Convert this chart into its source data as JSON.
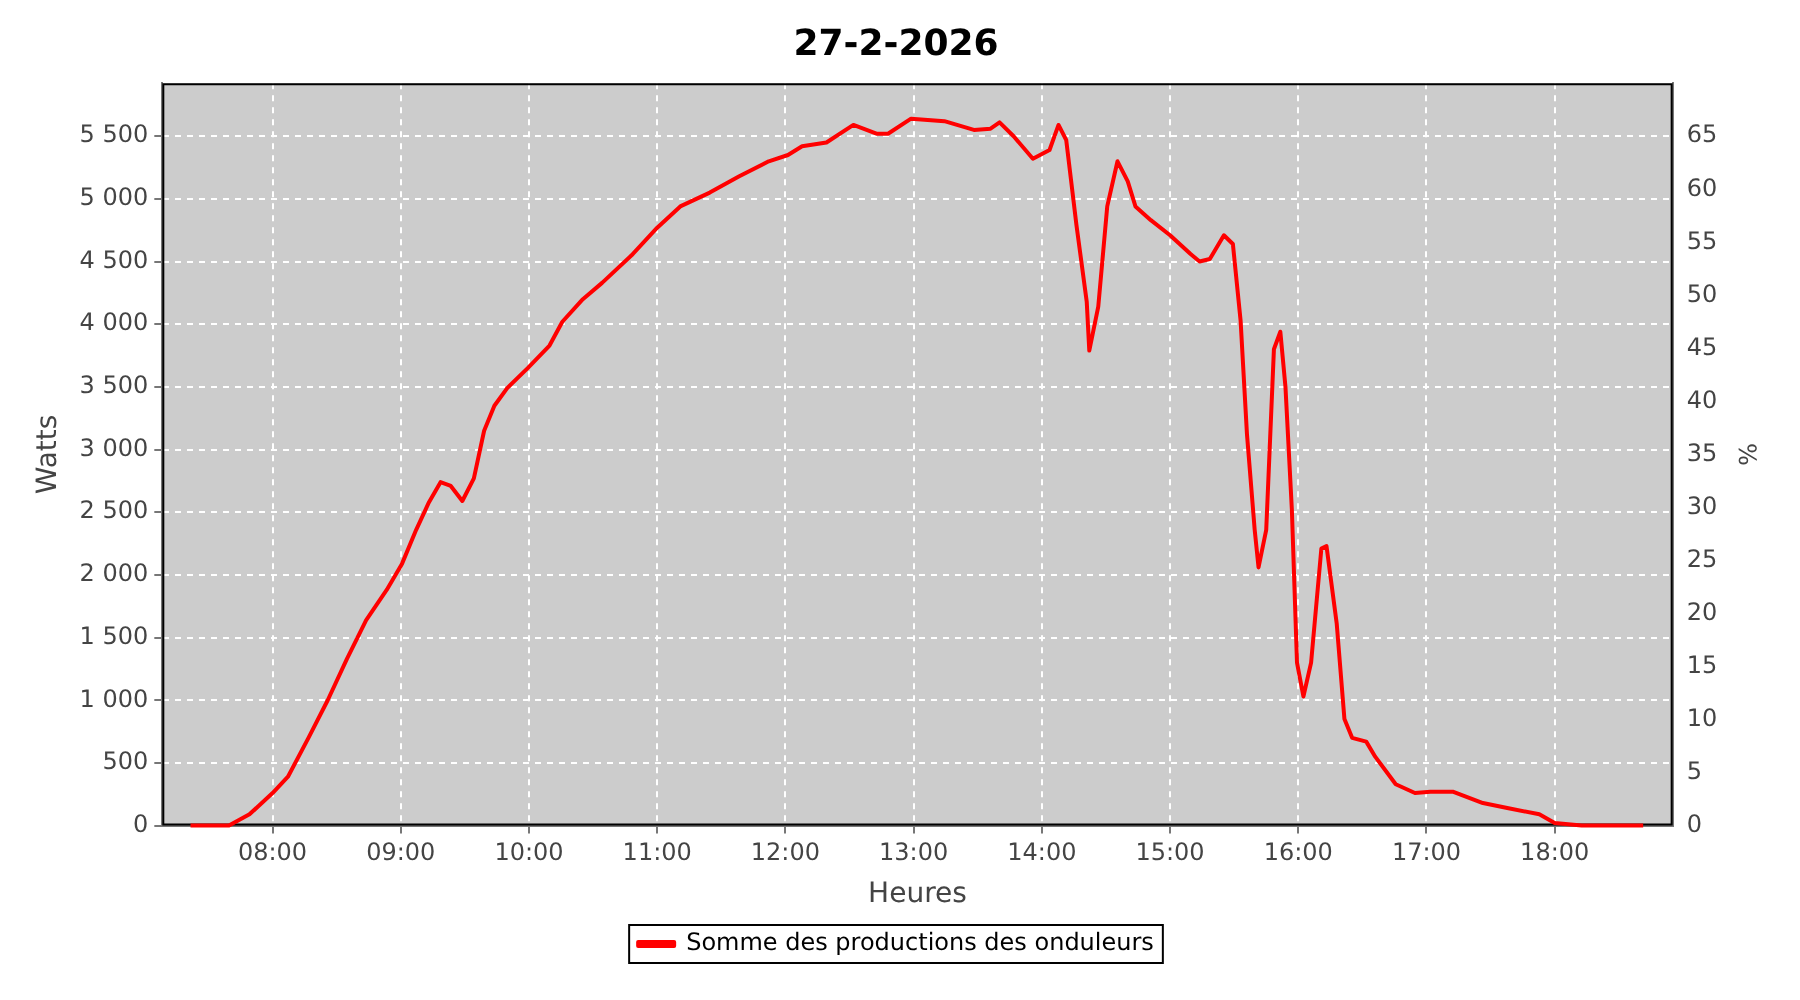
{
  "chart_data": {
    "type": "line",
    "title": "27-2-2026",
    "xlabel": "Heures",
    "ylabel": "Watts",
    "y2label": "%",
    "x": [
      7.36,
      7.66,
      7.82,
      8.0,
      8.12,
      8.28,
      8.43,
      8.58,
      8.73,
      8.89,
      9.01,
      9.12,
      9.22,
      9.31,
      9.39,
      9.48,
      9.57,
      9.65,
      9.73,
      9.83,
      9.99,
      10.16,
      10.26,
      10.42,
      10.57,
      10.8,
      11.0,
      11.18,
      11.41,
      11.64,
      11.87,
      12.02,
      12.13,
      12.32,
      12.53,
      12.71,
      12.8,
      12.98,
      13.24,
      13.47,
      13.6,
      13.67,
      13.78,
      13.93,
      14.06,
      14.13,
      14.19,
      14.27,
      14.35,
      14.37,
      14.44,
      14.51,
      14.59,
      14.67,
      14.73,
      14.85,
      15.0,
      15.16,
      15.23,
      15.31,
      15.42,
      15.49,
      15.55,
      15.6,
      15.66,
      15.69,
      15.75,
      15.81,
      15.86,
      15.9,
      15.95,
      15.99,
      16.04,
      16.1,
      16.18,
      16.22,
      16.3,
      16.36,
      16.42,
      16.53,
      16.6,
      16.76,
      16.91,
      17.03,
      17.21,
      17.44,
      17.63,
      17.88,
      18.0,
      18.21,
      18.69
    ],
    "series": [
      {
        "name": "Somme des productions des onduleurs",
        "color": "#ff0000",
        "values": [
          0,
          0,
          90,
          260,
          390,
          700,
          1000,
          1330,
          1640,
          1880,
          2090,
          2360,
          2580,
          2740,
          2710,
          2590,
          2770,
          3150,
          3350,
          3490,
          3650,
          3830,
          4020,
          4200,
          4330,
          4550,
          4770,
          4940,
          5050,
          5180,
          5300,
          5350,
          5420,
          5450,
          5590,
          5520,
          5520,
          5640,
          5620,
          5550,
          5560,
          5610,
          5500,
          5320,
          5390,
          5590,
          5470,
          4790,
          4180,
          3790,
          4140,
          4940,
          5300,
          5140,
          4940,
          4830,
          4710,
          4560,
          4500,
          4520,
          4710,
          4640,
          4030,
          3120,
          2360,
          2060,
          2360,
          3800,
          3940,
          3500,
          2520,
          1300,
          1030,
          1300,
          2210,
          2230,
          1610,
          850,
          700,
          670,
          550,
          330,
          260,
          270,
          270,
          180,
          140,
          90,
          20,
          0,
          0
        ]
      }
    ],
    "xlim": [
      7.14,
      18.92
    ],
    "xticks": [
      {
        "value": 8,
        "label": "08:00"
      },
      {
        "value": 9,
        "label": "09:00"
      },
      {
        "value": 10,
        "label": "10:00"
      },
      {
        "value": 11,
        "label": "11:00"
      },
      {
        "value": 12,
        "label": "12:00"
      },
      {
        "value": 13,
        "label": "13:00"
      },
      {
        "value": 14,
        "label": "14:00"
      },
      {
        "value": 15,
        "label": "15:00"
      },
      {
        "value": 16,
        "label": "16:00"
      },
      {
        "value": 17,
        "label": "17:00"
      },
      {
        "value": 18,
        "label": "18:00"
      }
    ],
    "ylim": [
      0,
      5923
    ],
    "yticks": [
      {
        "value": 0,
        "label": "0"
      },
      {
        "value": 500,
        "label": "500"
      },
      {
        "value": 1000,
        "label": "1 000"
      },
      {
        "value": 1500,
        "label": "1 500"
      },
      {
        "value": 2000,
        "label": "2 000"
      },
      {
        "value": 2500,
        "label": "2 500"
      },
      {
        "value": 3000,
        "label": "3 000"
      },
      {
        "value": 3500,
        "label": "3 500"
      },
      {
        "value": 4000,
        "label": "4 000"
      },
      {
        "value": 4500,
        "label": "4 500"
      },
      {
        "value": 5000,
        "label": "5 000"
      },
      {
        "value": 5500,
        "label": "5 500"
      }
    ],
    "y2lim": [
      0,
      70
    ],
    "y2ticks": [
      0,
      5,
      10,
      15,
      20,
      25,
      30,
      35,
      40,
      45,
      50,
      55,
      60,
      65
    ],
    "grid": true,
    "legend": "bottom",
    "marker": "none",
    "line_style": "solid"
  }
}
